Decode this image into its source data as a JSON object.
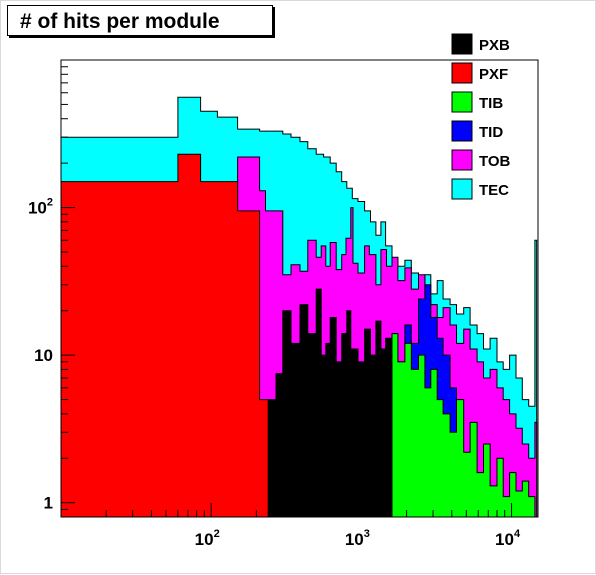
{
  "title": "# of hits per module",
  "chart_data": {
    "type": "area",
    "title": "# of hits per module",
    "xlabel": "",
    "ylabel": "",
    "x_scale": "log",
    "y_scale": "log",
    "xlim": [
      10,
      15000
    ],
    "ylim": [
      0.8,
      1000
    ],
    "x_ticks": [
      {
        "value": 100,
        "base": "10",
        "exp": "2"
      },
      {
        "value": 1000,
        "base": "10",
        "exp": "3"
      },
      {
        "value": 10000,
        "base": "10",
        "exp": "4"
      }
    ],
    "y_ticks": [
      {
        "value": 1,
        "label": "1"
      },
      {
        "value": 10,
        "label": "10"
      },
      {
        "value": 100,
        "base": "10",
        "exp": "2"
      }
    ],
    "legend_position": "top-right",
    "grid": false,
    "series": [
      {
        "name": "TEC",
        "color": "#00ffff",
        "points": [
          [
            10,
            300
          ],
          [
            60,
            300
          ],
          [
            60,
            560
          ],
          [
            85,
            560
          ],
          [
            85,
            450
          ],
          [
            110,
            450
          ],
          [
            110,
            410
          ],
          [
            150,
            410
          ],
          [
            150,
            340
          ],
          [
            210,
            340
          ],
          [
            210,
            330
          ],
          [
            300,
            330
          ],
          [
            300,
            315
          ],
          [
            340,
            315
          ],
          [
            340,
            300
          ],
          [
            390,
            300
          ],
          [
            390,
            280
          ],
          [
            440,
            280
          ],
          [
            440,
            250
          ],
          [
            500,
            250
          ],
          [
            500,
            230
          ],
          [
            560,
            230
          ],
          [
            560,
            220
          ],
          [
            620,
            220
          ],
          [
            620,
            200
          ],
          [
            680,
            200
          ],
          [
            680,
            175
          ],
          [
            740,
            175
          ],
          [
            740,
            150
          ],
          [
            800,
            150
          ],
          [
            800,
            135
          ],
          [
            870,
            135
          ],
          [
            870,
            115
          ],
          [
            950,
            115
          ],
          [
            950,
            110
          ],
          [
            1050,
            110
          ],
          [
            1050,
            95
          ],
          [
            1150,
            95
          ],
          [
            1150,
            80
          ],
          [
            1250,
            80
          ],
          [
            1250,
            65
          ],
          [
            1350,
            65
          ],
          [
            1350,
            80
          ],
          [
            1450,
            80
          ],
          [
            1450,
            55
          ],
          [
            1600,
            55
          ],
          [
            1600,
            45
          ],
          [
            1750,
            45
          ],
          [
            1750,
            40
          ],
          [
            1950,
            40
          ],
          [
            1950,
            44
          ],
          [
            2150,
            44
          ],
          [
            2150,
            36
          ],
          [
            2400,
            36
          ],
          [
            2400,
            30
          ],
          [
            2650,
            30
          ],
          [
            2650,
            35
          ],
          [
            2900,
            35
          ],
          [
            2900,
            26
          ],
          [
            3200,
            26
          ],
          [
            3200,
            32
          ],
          [
            3500,
            32
          ],
          [
            3500,
            24
          ],
          [
            3900,
            24
          ],
          [
            3900,
            22
          ],
          [
            4300,
            22
          ],
          [
            4300,
            19
          ],
          [
            4800,
            19
          ],
          [
            4800,
            21
          ],
          [
            5300,
            21
          ],
          [
            5300,
            16
          ],
          [
            5900,
            16
          ],
          [
            5900,
            14
          ],
          [
            6500,
            14
          ],
          [
            6500,
            11
          ],
          [
            7200,
            11
          ],
          [
            7200,
            13
          ],
          [
            8000,
            13
          ],
          [
            8000,
            9
          ],
          [
            8800,
            9
          ],
          [
            8800,
            8
          ],
          [
            9700,
            8
          ],
          [
            9700,
            10
          ],
          [
            10700,
            10
          ],
          [
            10700,
            7
          ],
          [
            11800,
            7
          ],
          [
            11800,
            5
          ],
          [
            13000,
            5
          ],
          [
            13000,
            4.5
          ],
          [
            14300,
            4.5
          ],
          [
            14300,
            60
          ],
          [
            14700,
            60
          ],
          [
            14700,
            0.8
          ]
        ]
      },
      {
        "name": "TOB",
        "color": "#ff00ff",
        "points": [
          [
            150,
            220
          ],
          [
            210,
            220
          ],
          [
            210,
            130
          ],
          [
            230,
            130
          ],
          [
            230,
            95
          ],
          [
            300,
            95
          ],
          [
            300,
            35
          ],
          [
            340,
            35
          ],
          [
            340,
            41
          ],
          [
            390,
            41
          ],
          [
            390,
            37
          ],
          [
            440,
            37
          ],
          [
            440,
            60
          ],
          [
            500,
            60
          ],
          [
            500,
            46
          ],
          [
            540,
            46
          ],
          [
            540,
            55
          ],
          [
            580,
            55
          ],
          [
            580,
            40
          ],
          [
            620,
            40
          ],
          [
            620,
            58
          ],
          [
            680,
            58
          ],
          [
            680,
            38
          ],
          [
            740,
            38
          ],
          [
            740,
            48
          ],
          [
            790,
            48
          ],
          [
            790,
            62
          ],
          [
            850,
            62
          ],
          [
            850,
            100
          ],
          [
            880,
            100
          ],
          [
            880,
            42
          ],
          [
            950,
            42
          ],
          [
            950,
            36
          ],
          [
            1050,
            36
          ],
          [
            1050,
            55
          ],
          [
            1130,
            55
          ],
          [
            1130,
            48
          ],
          [
            1250,
            48
          ],
          [
            1250,
            30
          ],
          [
            1350,
            30
          ],
          [
            1350,
            52
          ],
          [
            1470,
            52
          ],
          [
            1470,
            40
          ],
          [
            1600,
            40
          ],
          [
            1600,
            46
          ],
          [
            1750,
            46
          ],
          [
            1750,
            32
          ],
          [
            1950,
            32
          ],
          [
            1950,
            39
          ],
          [
            2150,
            39
          ],
          [
            2150,
            28
          ],
          [
            2400,
            28
          ],
          [
            2400,
            35
          ],
          [
            2650,
            35
          ],
          [
            2650,
            25
          ],
          [
            2900,
            25
          ],
          [
            2900,
            22
          ],
          [
            3200,
            22
          ],
          [
            3200,
            18
          ],
          [
            3500,
            18
          ],
          [
            3500,
            21
          ],
          [
            3900,
            21
          ],
          [
            3900,
            16
          ],
          [
            4300,
            16
          ],
          [
            4300,
            12
          ],
          [
            4800,
            12
          ],
          [
            4800,
            15
          ],
          [
            5300,
            15
          ],
          [
            5300,
            11
          ],
          [
            5900,
            11
          ],
          [
            5900,
            9
          ],
          [
            6500,
            9
          ],
          [
            6500,
            7
          ],
          [
            7200,
            7
          ],
          [
            7200,
            8
          ],
          [
            8000,
            8
          ],
          [
            8000,
            6
          ],
          [
            8800,
            6
          ],
          [
            8800,
            5
          ],
          [
            9700,
            5
          ],
          [
            9700,
            4
          ],
          [
            10700,
            4
          ],
          [
            10700,
            3.2
          ],
          [
            11800,
            3.2
          ],
          [
            11800,
            2.5
          ],
          [
            13000,
            2.5
          ],
          [
            13000,
            2
          ],
          [
            14300,
            2
          ],
          [
            14300,
            3.5
          ],
          [
            14700,
            3.5
          ],
          [
            14700,
            0.8
          ]
        ]
      },
      {
        "name": "TID",
        "color": "#0000ff",
        "points": [
          [
            1600,
            14
          ],
          [
            1750,
            14
          ],
          [
            1750,
            9
          ],
          [
            1950,
            9
          ],
          [
            1950,
            16
          ],
          [
            2150,
            16
          ],
          [
            2150,
            12
          ],
          [
            2400,
            12
          ],
          [
            2400,
            24
          ],
          [
            2650,
            24
          ],
          [
            2650,
            30
          ],
          [
            2900,
            30
          ],
          [
            2900,
            18
          ],
          [
            3200,
            18
          ],
          [
            3200,
            13
          ],
          [
            3500,
            13
          ],
          [
            3500,
            10
          ],
          [
            3900,
            10
          ],
          [
            3900,
            6
          ],
          [
            4300,
            6
          ],
          [
            4300,
            0.8
          ]
        ]
      },
      {
        "name": "TIB",
        "color": "#00ff00",
        "points": [
          [
            1600,
            14
          ],
          [
            1750,
            14
          ],
          [
            1750,
            9
          ],
          [
            1950,
            9
          ],
          [
            1950,
            12
          ],
          [
            2150,
            12
          ],
          [
            2150,
            8
          ],
          [
            2400,
            8
          ],
          [
            2400,
            10
          ],
          [
            2650,
            10
          ],
          [
            2650,
            6
          ],
          [
            2900,
            6
          ],
          [
            2900,
            8
          ],
          [
            3200,
            8
          ],
          [
            3200,
            5
          ],
          [
            3500,
            5
          ],
          [
            3500,
            4
          ],
          [
            3900,
            4
          ],
          [
            3900,
            3
          ],
          [
            4300,
            3
          ],
          [
            4300,
            5
          ],
          [
            4800,
            5
          ],
          [
            4800,
            2.2
          ],
          [
            5300,
            2.2
          ],
          [
            5300,
            3.5
          ],
          [
            5900,
            3.5
          ],
          [
            5900,
            1.6
          ],
          [
            6500,
            1.6
          ],
          [
            6500,
            2.5
          ],
          [
            7200,
            2.5
          ],
          [
            7200,
            1.3
          ],
          [
            8000,
            1.3
          ],
          [
            8000,
            2
          ],
          [
            8800,
            2
          ],
          [
            8800,
            1.1
          ],
          [
            9700,
            1.1
          ],
          [
            9700,
            1.6
          ],
          [
            10700,
            1.6
          ],
          [
            10700,
            1.2
          ],
          [
            11800,
            1.2
          ],
          [
            11800,
            1.4
          ],
          [
            13000,
            1.4
          ],
          [
            13000,
            1.1
          ],
          [
            14300,
            1.1
          ],
          [
            14300,
            0.8
          ]
        ]
      },
      {
        "name": "PXF",
        "color": "#ff0000",
        "points": [
          [
            10,
            150
          ],
          [
            60,
            150
          ],
          [
            60,
            230
          ],
          [
            85,
            230
          ],
          [
            85,
            150
          ],
          [
            150,
            150
          ],
          [
            150,
            95
          ],
          [
            210,
            95
          ],
          [
            210,
            5
          ],
          [
            240,
            5
          ],
          [
            240,
            0.8
          ]
        ]
      },
      {
        "name": "PXB",
        "color": "#000000",
        "points": [
          [
            240,
            5
          ],
          [
            270,
            5
          ],
          [
            270,
            7.5
          ],
          [
            300,
            7.5
          ],
          [
            300,
            20
          ],
          [
            340,
            20
          ],
          [
            340,
            12
          ],
          [
            390,
            12
          ],
          [
            390,
            22
          ],
          [
            440,
            22
          ],
          [
            440,
            14
          ],
          [
            500,
            14
          ],
          [
            500,
            28
          ],
          [
            540,
            28
          ],
          [
            540,
            10
          ],
          [
            580,
            10
          ],
          [
            580,
            12
          ],
          [
            620,
            12
          ],
          [
            620,
            18
          ],
          [
            680,
            18
          ],
          [
            680,
            9
          ],
          [
            740,
            9
          ],
          [
            740,
            14
          ],
          [
            800,
            14
          ],
          [
            800,
            20
          ],
          [
            850,
            20
          ],
          [
            850,
            11
          ],
          [
            950,
            11
          ],
          [
            950,
            9
          ],
          [
            1050,
            9
          ],
          [
            1050,
            15
          ],
          [
            1150,
            15
          ],
          [
            1150,
            10
          ],
          [
            1250,
            10
          ],
          [
            1250,
            17
          ],
          [
            1350,
            17
          ],
          [
            1350,
            11
          ],
          [
            1450,
            11
          ],
          [
            1450,
            13
          ],
          [
            1600,
            13
          ],
          [
            1600,
            0.8
          ]
        ]
      }
    ],
    "legend_items": [
      {
        "label": "PXB",
        "color": "#000000"
      },
      {
        "label": "PXF",
        "color": "#ff0000"
      },
      {
        "label": "TIB",
        "color": "#00ff00"
      },
      {
        "label": "TID",
        "color": "#0000ff"
      },
      {
        "label": "TOB",
        "color": "#ff00ff"
      },
      {
        "label": "TEC",
        "color": "#00ffff"
      }
    ]
  }
}
